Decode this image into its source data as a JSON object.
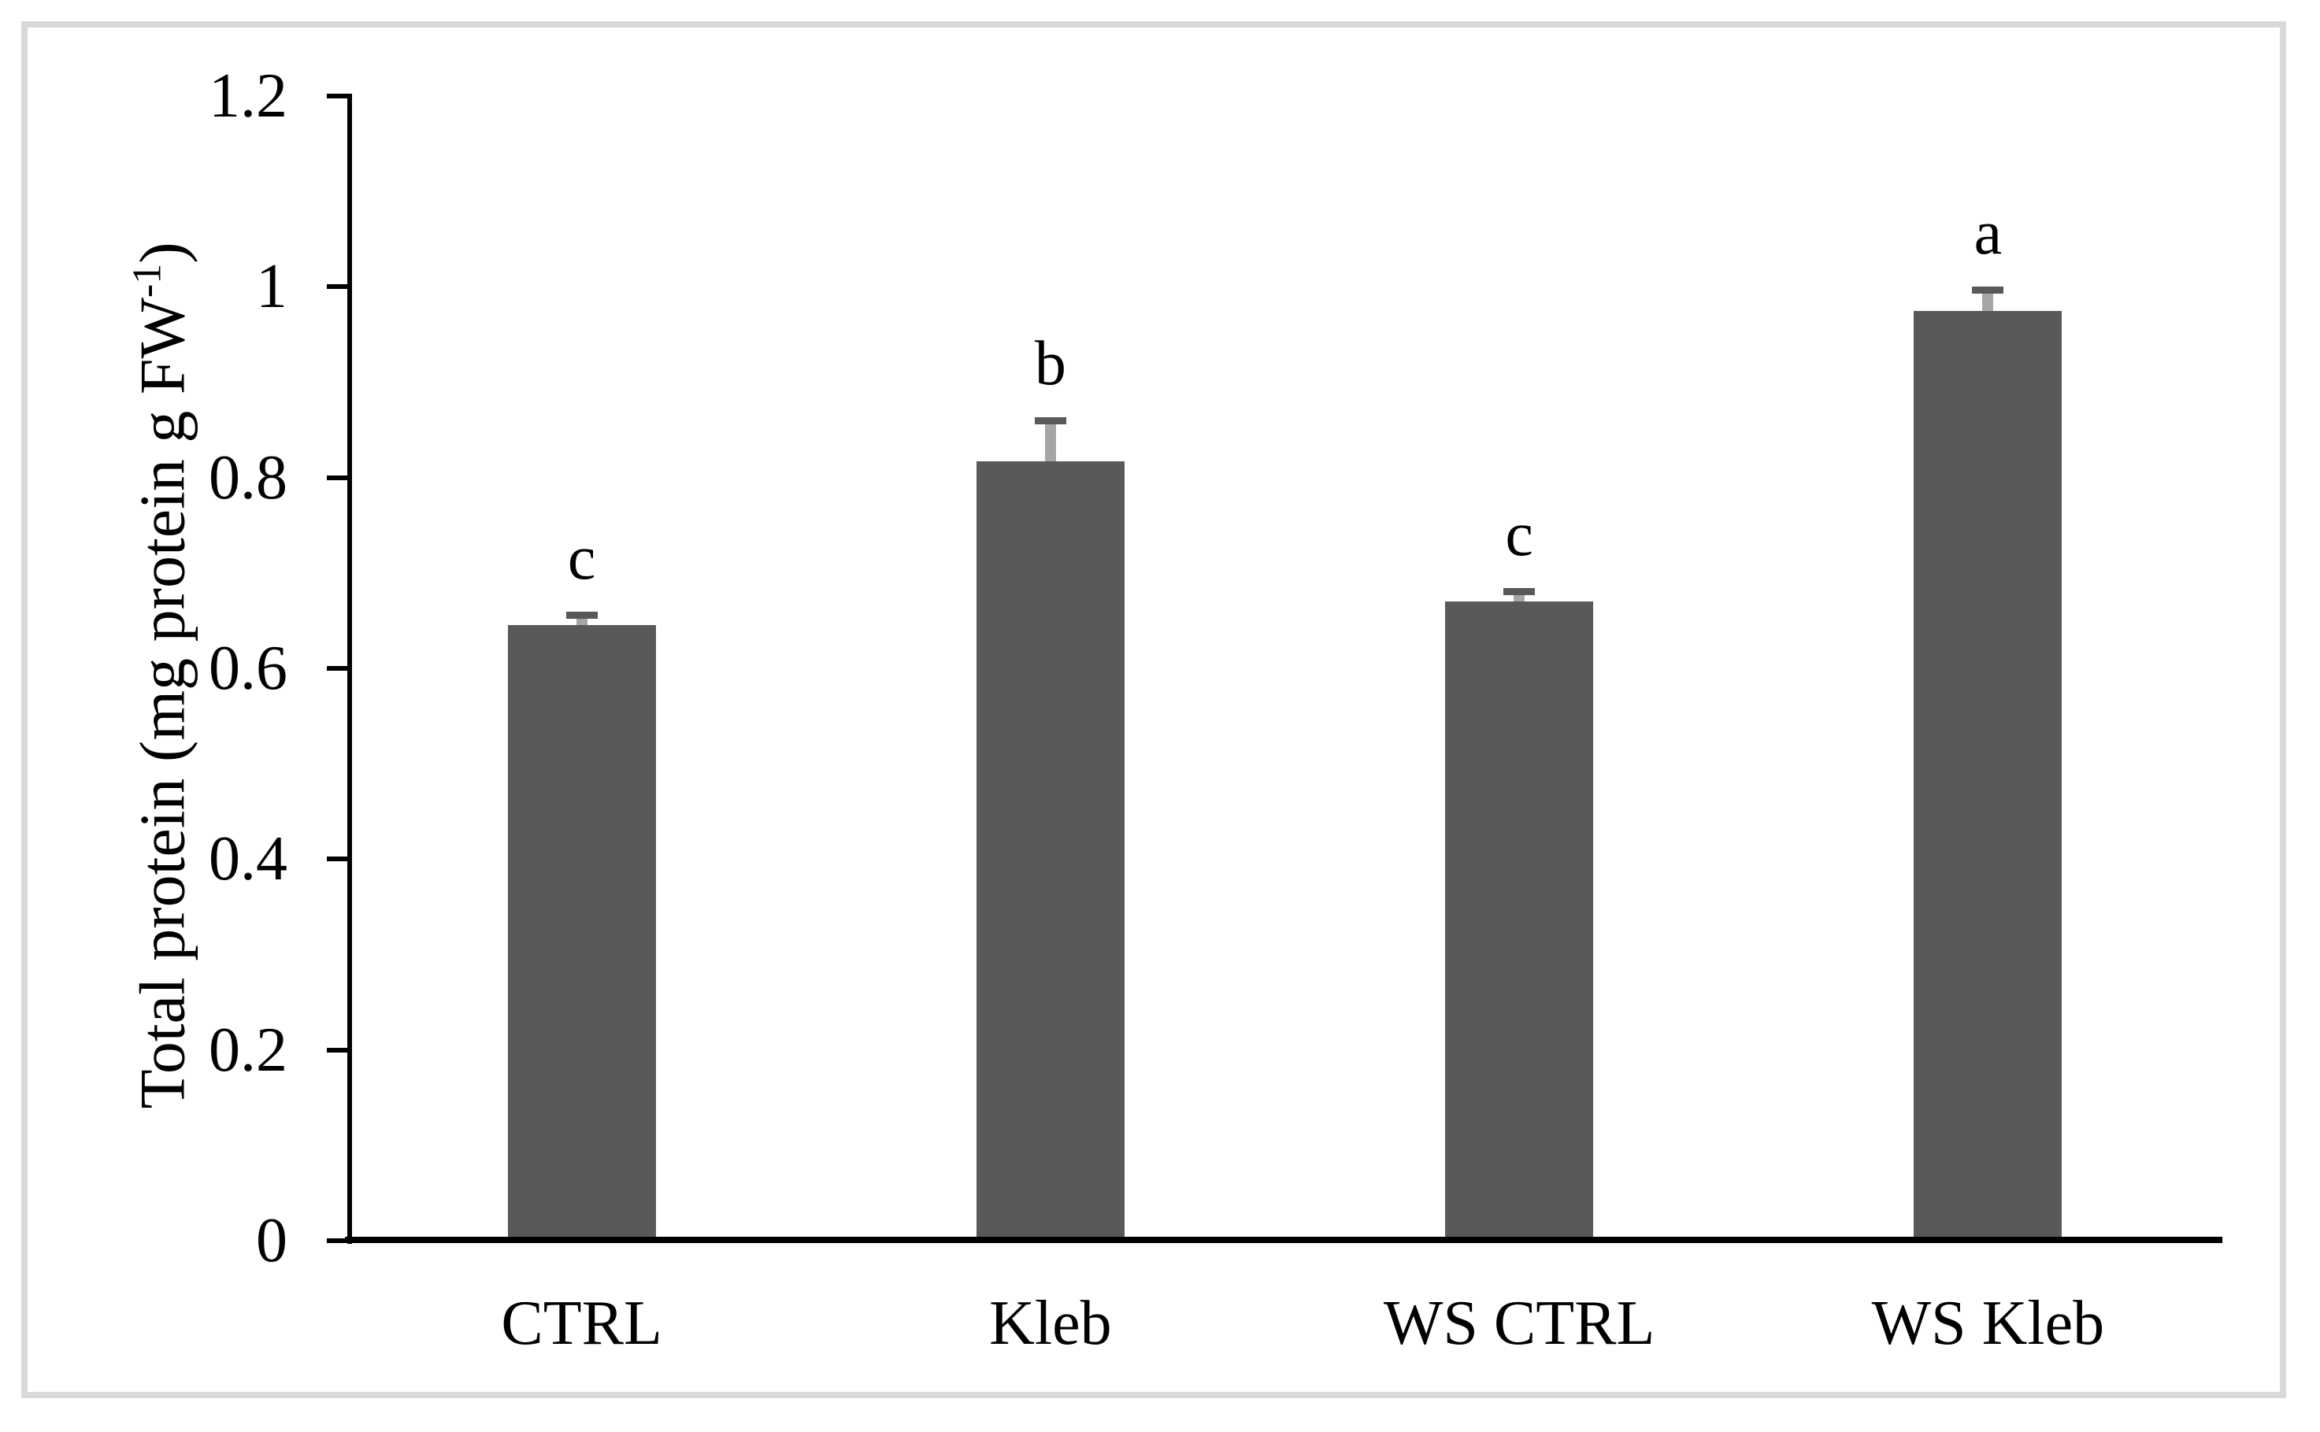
{
  "chart_data": {
    "type": "bar",
    "title": "",
    "xlabel": "",
    "ylabel": "Total protein (mg protein g FW-1)",
    "ylabel_parts": {
      "prefix": "Total protein (mg protein g FW",
      "superscript": "-1",
      "suffix": ")"
    },
    "categories": [
      "CTRL",
      "Kleb",
      "WS CTRL",
      "WS Kleb"
    ],
    "series": [
      {
        "name": "Total protein",
        "values": [
          0.645,
          0.817,
          0.67,
          0.975
        ],
        "errors_plus": [
          0.012,
          0.044,
          0.012,
          0.023
        ],
        "sig_letters": [
          "c",
          "b",
          "c",
          "a"
        ]
      }
    ],
    "ylim": [
      0,
      1.2
    ],
    "yticks": [
      0,
      0.2,
      0.4,
      0.6,
      0.8,
      1,
      1.2
    ],
    "ytick_labels": [
      "0",
      "0.2",
      "0.4",
      "0.6",
      "0.8",
      "1",
      "1.2"
    ],
    "grid": false,
    "legend": null,
    "error_bars": "plus-only",
    "colors": {
      "bar_fill": "#595959",
      "error_stem": "#a6a6a6",
      "error_cap": "#595959",
      "axis": "#000000",
      "frame_border": "#d9d9d9",
      "text": "#000000",
      "background": "#ffffff"
    }
  }
}
